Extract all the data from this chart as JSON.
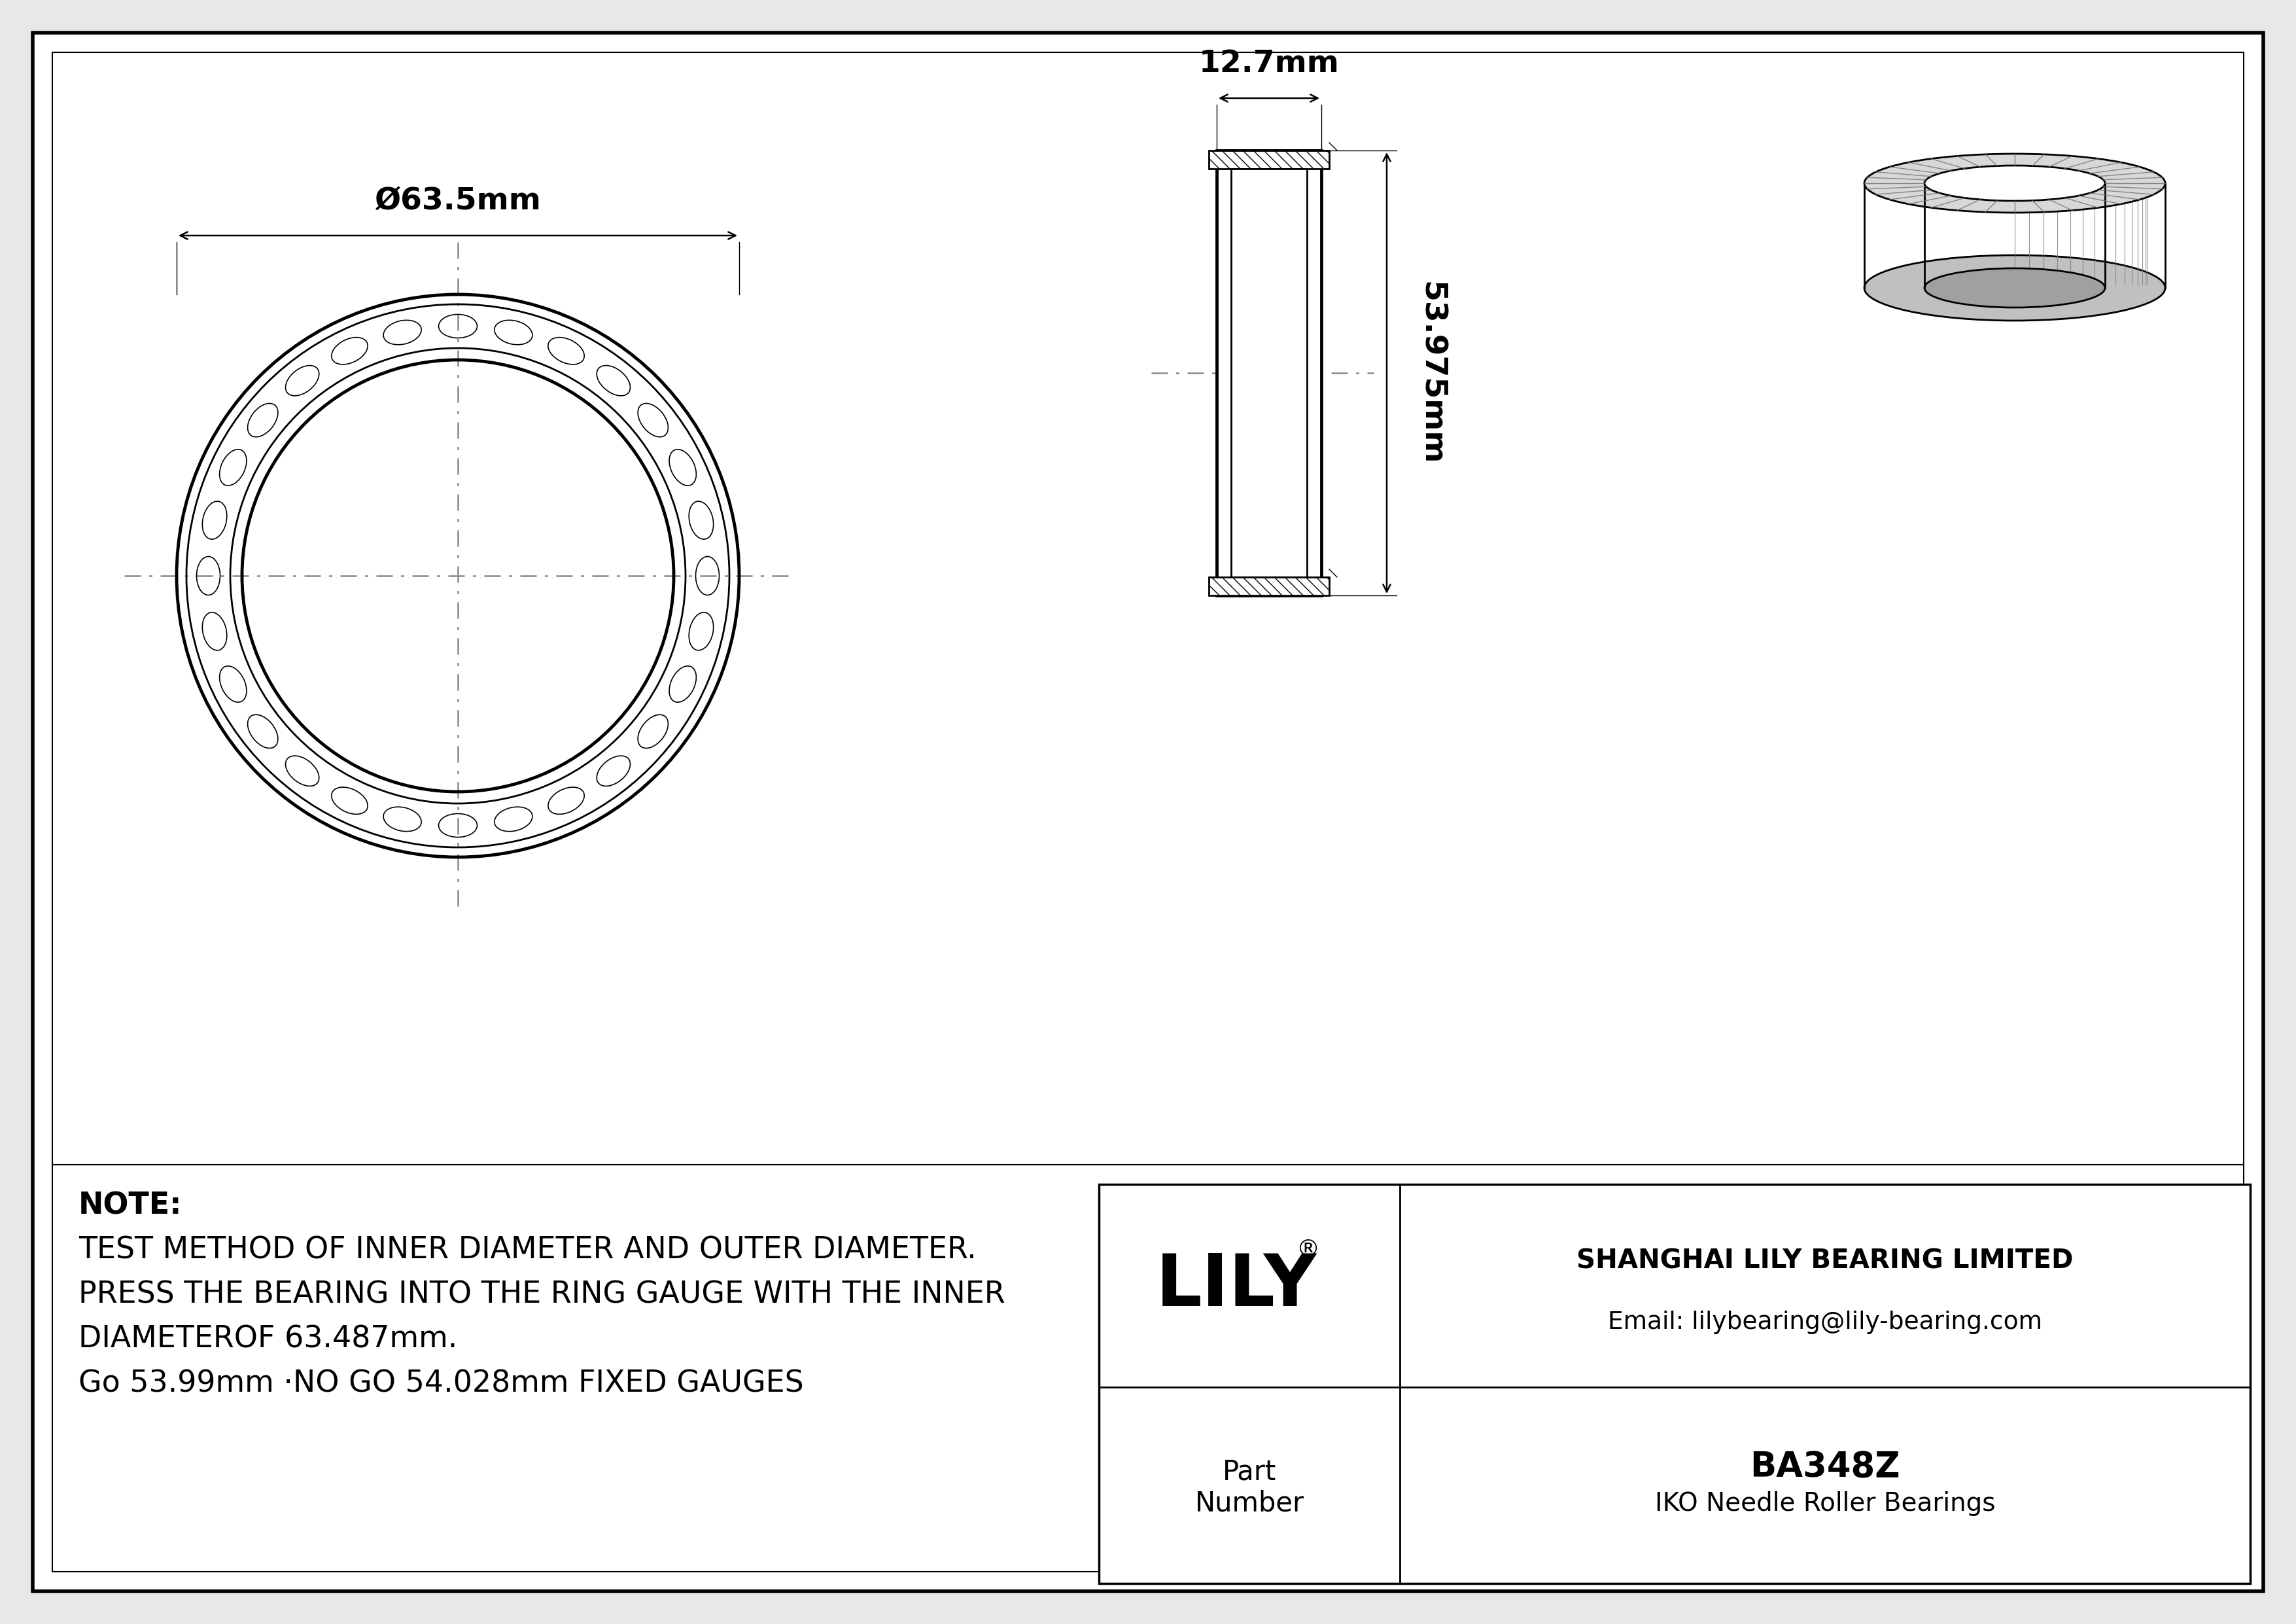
{
  "bg_color": "#e8e8e8",
  "drawing_bg": "#ffffff",
  "border_color": "#000000",
  "line_color": "#000000",
  "dim_color": "#000000",
  "cl_color": "#888888",
  "note_line1": "NOTE:",
  "note_line2": "TEST METHOD OF INNER DIAMETER AND OUTER DIAMETER.",
  "note_line3": "PRESS THE BEARING INTO THE RING GAUGE WITH THE INNER",
  "note_line4": "DIAMETEROF 63.487mm.",
  "note_line5": "Go 53.99mm ·NO GO 54.028mm FIXED GAUGES",
  "company": "SHANGHAI LILY BEARING LIMITED",
  "email": "Email: lilybearing@lily-bearing.com",
  "part_number": "BA348Z",
  "part_type": "IKO Needle Roller Bearings",
  "lily_logo": "LILY",
  "dim_outer_diameter": "Ø63.5mm",
  "dim_width": "12.7mm",
  "dim_height": "53.975mm"
}
